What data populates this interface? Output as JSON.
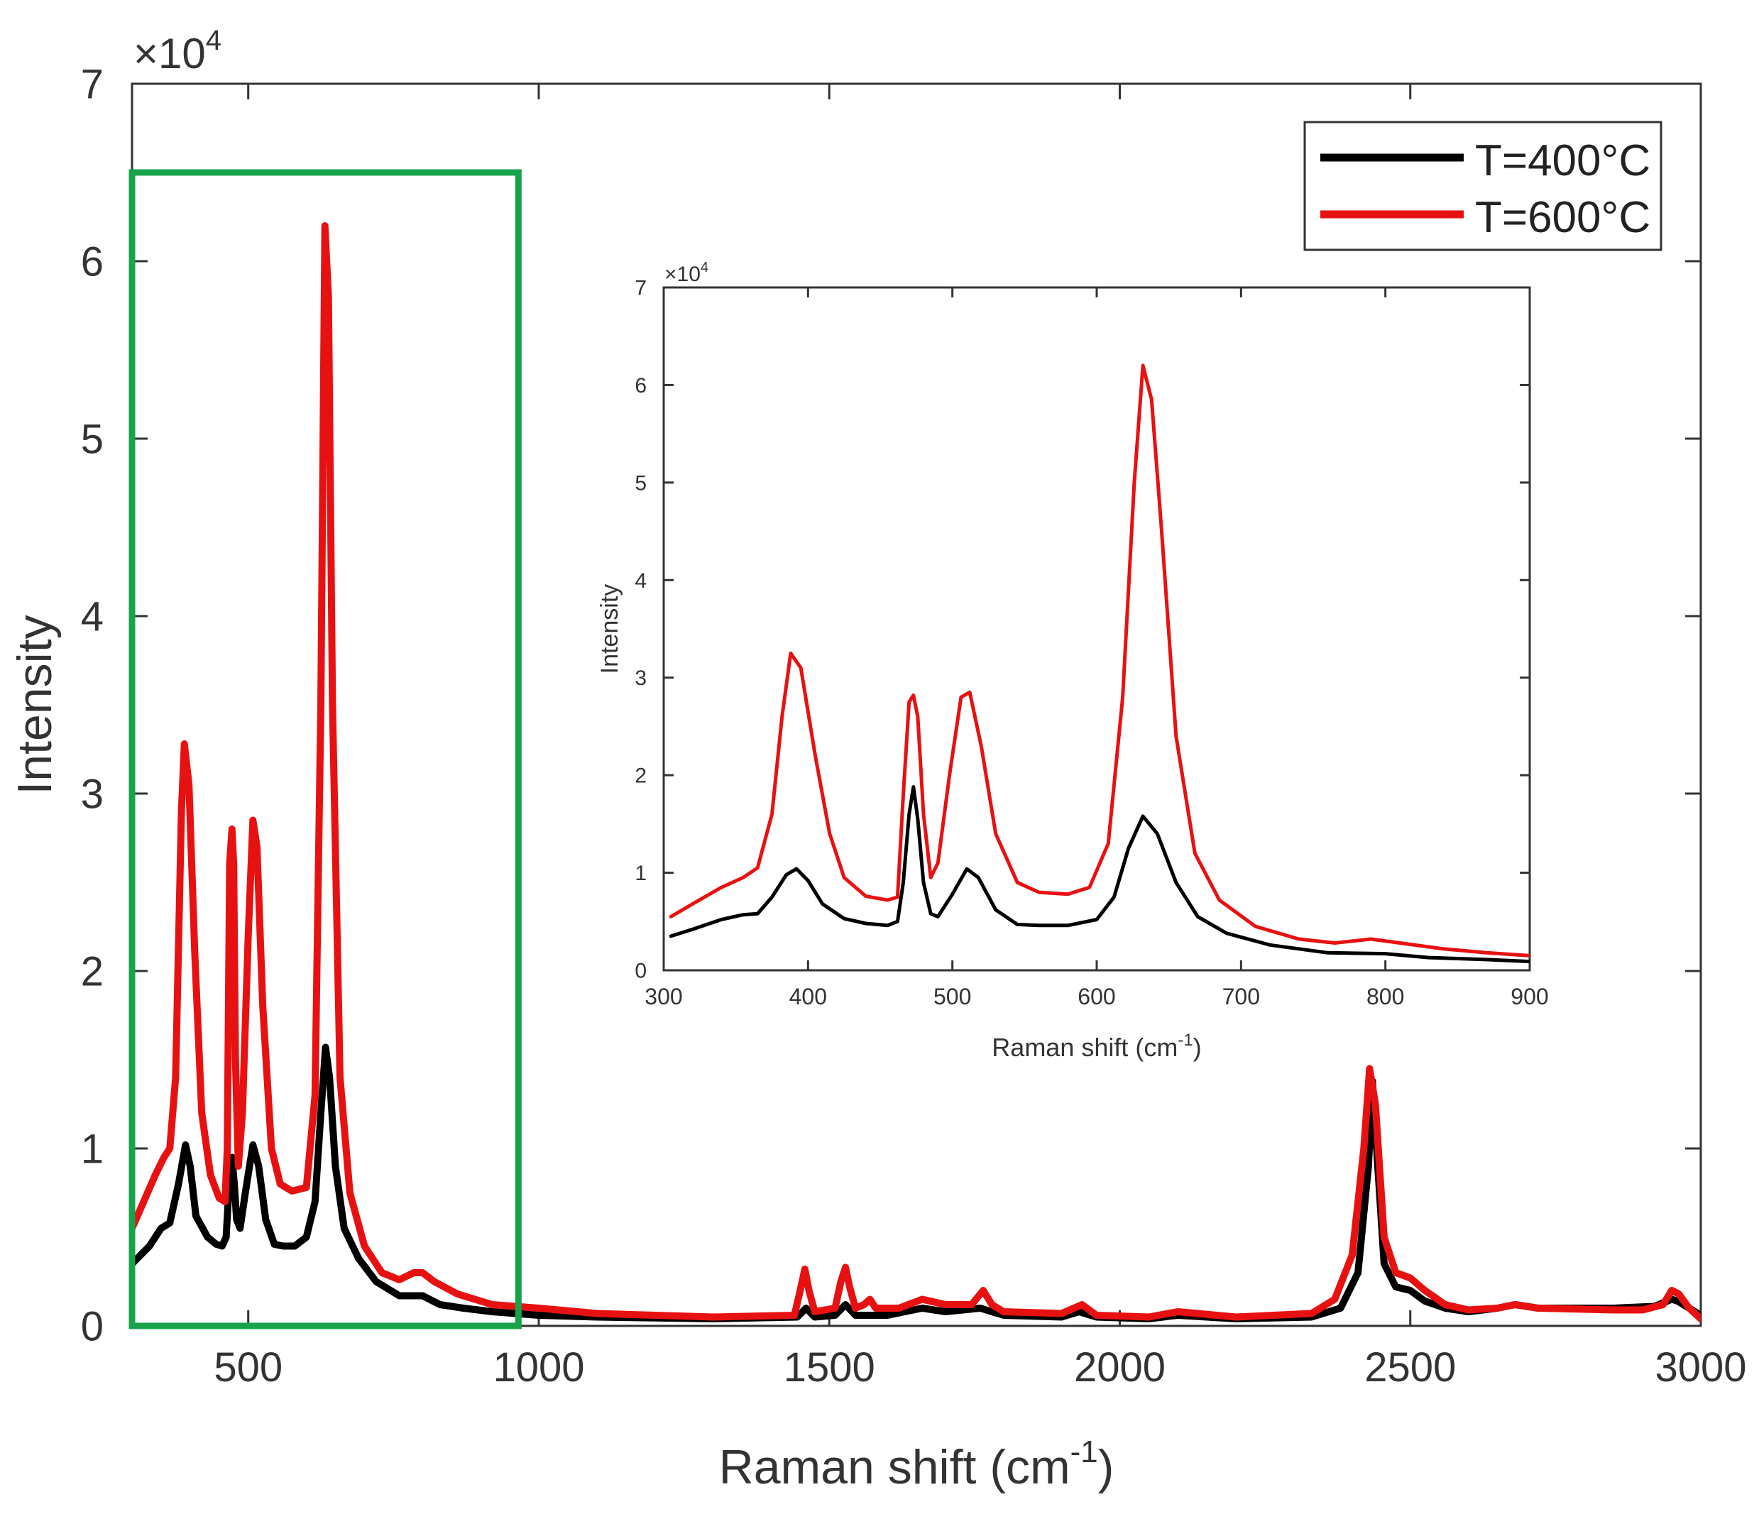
{
  "chart_data": [
    {
      "id": "main",
      "type": "line",
      "title": "",
      "xlabel": "Raman shift (cm",
      "xlabel_sup": "-1",
      "xlabel_tail": ")",
      "ylabel": "Intensity",
      "exponent_prefix": "×10",
      "exponent_power": "4",
      "xlim": [
        300,
        3000
      ],
      "ylim": [
        0,
        7
      ],
      "xticks": [
        500,
        1000,
        1500,
        2000,
        2500,
        3000
      ],
      "yticks": [
        0,
        1,
        2,
        3,
        4,
        5,
        6,
        7
      ],
      "legend": {
        "position": "top-right",
        "entries": [
          {
            "label": "T=400°C",
            "color": "#000000"
          },
          {
            "label": "T=600°C",
            "color": "#e81111"
          }
        ]
      },
      "highlight_region": {
        "x": [
          300,
          965
        ],
        "y": [
          0,
          6.5
        ],
        "color": "#16a34a"
      },
      "series": [
        {
          "name": "T=400°C",
          "color": "#000000",
          "points": [
            [
              300,
              0.35
            ],
            [
              330,
              0.45
            ],
            [
              350,
              0.55
            ],
            [
              365,
              0.58
            ],
            [
              380,
              0.8
            ],
            [
              392,
              1.02
            ],
            [
              400,
              0.9
            ],
            [
              410,
              0.62
            ],
            [
              430,
              0.5
            ],
            [
              445,
              0.46
            ],
            [
              455,
              0.45
            ],
            [
              462,
              0.5
            ],
            [
              468,
              0.85
            ],
            [
              472,
              0.95
            ],
            [
              476,
              0.8
            ],
            [
              480,
              0.6
            ],
            [
              486,
              0.55
            ],
            [
              495,
              0.75
            ],
            [
              508,
              1.02
            ],
            [
              518,
              0.9
            ],
            [
              530,
              0.6
            ],
            [
              545,
              0.46
            ],
            [
              560,
              0.45
            ],
            [
              580,
              0.45
            ],
            [
              600,
              0.5
            ],
            [
              615,
              0.7
            ],
            [
              625,
              1.2
            ],
            [
              633,
              1.57
            ],
            [
              640,
              1.4
            ],
            [
              650,
              0.9
            ],
            [
              665,
              0.55
            ],
            [
              690,
              0.38
            ],
            [
              720,
              0.25
            ],
            [
              760,
              0.17
            ],
            [
              800,
              0.17
            ],
            [
              830,
              0.12
            ],
            [
              870,
              0.1
            ],
            [
              920,
              0.08
            ],
            [
              1000,
              0.06
            ],
            [
              1100,
              0.05
            ],
            [
              1300,
              0.04
            ],
            [
              1445,
              0.05
            ],
            [
              1460,
              0.1
            ],
            [
              1475,
              0.05
            ],
            [
              1510,
              0.06
            ],
            [
              1528,
              0.12
            ],
            [
              1545,
              0.06
            ],
            [
              1600,
              0.06
            ],
            [
              1660,
              0.1
            ],
            [
              1700,
              0.08
            ],
            [
              1760,
              0.1
            ],
            [
              1780,
              0.08
            ],
            [
              1800,
              0.06
            ],
            [
              1900,
              0.05
            ],
            [
              1930,
              0.08
            ],
            [
              1960,
              0.05
            ],
            [
              2050,
              0.04
            ],
            [
              2100,
              0.06
            ],
            [
              2200,
              0.04
            ],
            [
              2330,
              0.05
            ],
            [
              2380,
              0.1
            ],
            [
              2410,
              0.3
            ],
            [
              2428,
              0.9
            ],
            [
              2435,
              1.38
            ],
            [
              2442,
              1.0
            ],
            [
              2455,
              0.35
            ],
            [
              2475,
              0.22
            ],
            [
              2500,
              0.2
            ],
            [
              2525,
              0.14
            ],
            [
              2560,
              0.1
            ],
            [
              2600,
              0.08
            ],
            [
              2650,
              0.1
            ],
            [
              2680,
              0.12
            ],
            [
              2720,
              0.1
            ],
            [
              2850,
              0.1
            ],
            [
              2920,
              0.11
            ],
            [
              2950,
              0.15
            ],
            [
              2960,
              0.14
            ],
            [
              2980,
              0.1
            ],
            [
              3000,
              0.06
            ]
          ]
        },
        {
          "name": "T=600°C",
          "color": "#e81111",
          "points": [
            [
              300,
              0.55
            ],
            [
              320,
              0.7
            ],
            [
              340,
              0.85
            ],
            [
              355,
              0.95
            ],
            [
              365,
              1.0
            ],
            [
              375,
              1.4
            ],
            [
              385,
              2.9
            ],
            [
              390,
              3.28
            ],
            [
              398,
              3.05
            ],
            [
              408,
              2.1
            ],
            [
              420,
              1.2
            ],
            [
              435,
              0.85
            ],
            [
              450,
              0.72
            ],
            [
              460,
              0.7
            ],
            [
              464,
              1.0
            ],
            [
              468,
              2.6
            ],
            [
              472,
              2.8
            ],
            [
              475,
              2.6
            ],
            [
              478,
              1.5
            ],
            [
              483,
              0.9
            ],
            [
              490,
              1.2
            ],
            [
              500,
              2.2
            ],
            [
              508,
              2.85
            ],
            [
              515,
              2.7
            ],
            [
              525,
              1.8
            ],
            [
              540,
              1.0
            ],
            [
              555,
              0.8
            ],
            [
              575,
              0.76
            ],
            [
              600,
              0.78
            ],
            [
              615,
              1.3
            ],
            [
              625,
              3.5
            ],
            [
              632,
              6.2
            ],
            [
              638,
              5.8
            ],
            [
              645,
              3.5
            ],
            [
              658,
              1.4
            ],
            [
              675,
              0.75
            ],
            [
              700,
              0.45
            ],
            [
              730,
              0.3
            ],
            [
              760,
              0.26
            ],
            [
              785,
              0.3
            ],
            [
              800,
              0.3
            ],
            [
              820,
              0.25
            ],
            [
              860,
              0.18
            ],
            [
              920,
              0.12
            ],
            [
              1000,
              0.1
            ],
            [
              1100,
              0.07
            ],
            [
              1300,
              0.05
            ],
            [
              1440,
              0.06
            ],
            [
              1450,
              0.2
            ],
            [
              1458,
              0.32
            ],
            [
              1465,
              0.2
            ],
            [
              1475,
              0.08
            ],
            [
              1510,
              0.1
            ],
            [
              1520,
              0.25
            ],
            [
              1528,
              0.33
            ],
            [
              1535,
              0.22
            ],
            [
              1545,
              0.1
            ],
            [
              1560,
              0.12
            ],
            [
              1570,
              0.15
            ],
            [
              1580,
              0.1
            ],
            [
              1620,
              0.1
            ],
            [
              1660,
              0.15
            ],
            [
              1700,
              0.12
            ],
            [
              1745,
              0.12
            ],
            [
              1765,
              0.2
            ],
            [
              1780,
              0.12
            ],
            [
              1800,
              0.08
            ],
            [
              1900,
              0.07
            ],
            [
              1935,
              0.12
            ],
            [
              1960,
              0.06
            ],
            [
              2050,
              0.05
            ],
            [
              2100,
              0.08
            ],
            [
              2200,
              0.05
            ],
            [
              2330,
              0.07
            ],
            [
              2370,
              0.15
            ],
            [
              2400,
              0.4
            ],
            [
              2420,
              1.0
            ],
            [
              2430,
              1.45
            ],
            [
              2440,
              1.25
            ],
            [
              2455,
              0.5
            ],
            [
              2475,
              0.3
            ],
            [
              2500,
              0.27
            ],
            [
              2525,
              0.2
            ],
            [
              2560,
              0.12
            ],
            [
              2600,
              0.09
            ],
            [
              2650,
              0.1
            ],
            [
              2680,
              0.12
            ],
            [
              2720,
              0.1
            ],
            [
              2850,
              0.09
            ],
            [
              2900,
              0.09
            ],
            [
              2935,
              0.12
            ],
            [
              2950,
              0.2
            ],
            [
              2962,
              0.18
            ],
            [
              2980,
              0.1
            ],
            [
              3000,
              0.04
            ]
          ]
        }
      ]
    },
    {
      "id": "inset",
      "type": "line",
      "title": "",
      "xlabel": "Raman shift (cm",
      "xlabel_sup": "-1",
      "xlabel_tail": ")",
      "ylabel": "Intensity",
      "exponent_prefix": "×10",
      "exponent_power": "4",
      "xlim": [
        300,
        900
      ],
      "ylim": [
        0,
        7
      ],
      "xticks": [
        300,
        400,
        500,
        600,
        700,
        800,
        900
      ],
      "yticks": [
        0,
        1,
        2,
        3,
        4,
        5,
        6,
        7
      ],
      "series": [
        {
          "name": "T=400°C",
          "color": "#000000",
          "points": [
            [
              305,
              0.35
            ],
            [
              320,
              0.42
            ],
            [
              340,
              0.52
            ],
            [
              355,
              0.57
            ],
            [
              365,
              0.58
            ],
            [
              375,
              0.75
            ],
            [
              385,
              0.98
            ],
            [
              392,
              1.04
            ],
            [
              400,
              0.92
            ],
            [
              410,
              0.68
            ],
            [
              425,
              0.53
            ],
            [
              440,
              0.48
            ],
            [
              455,
              0.46
            ],
            [
              462,
              0.5
            ],
            [
              466,
              0.9
            ],
            [
              470,
              1.6
            ],
            [
              473,
              1.88
            ],
            [
              476,
              1.55
            ],
            [
              480,
              0.9
            ],
            [
              485,
              0.58
            ],
            [
              490,
              0.55
            ],
            [
              500,
              0.78
            ],
            [
              510,
              1.04
            ],
            [
              518,
              0.95
            ],
            [
              530,
              0.62
            ],
            [
              545,
              0.47
            ],
            [
              560,
              0.46
            ],
            [
              580,
              0.46
            ],
            [
              600,
              0.52
            ],
            [
              612,
              0.75
            ],
            [
              622,
              1.25
            ],
            [
              632,
              1.58
            ],
            [
              642,
              1.4
            ],
            [
              655,
              0.9
            ],
            [
              670,
              0.55
            ],
            [
              690,
              0.38
            ],
            [
              720,
              0.26
            ],
            [
              760,
              0.18
            ],
            [
              800,
              0.17
            ],
            [
              830,
              0.13
            ],
            [
              870,
              0.11
            ],
            [
              900,
              0.09
            ]
          ]
        },
        {
          "name": "T=600°C",
          "color": "#e81111",
          "points": [
            [
              305,
              0.55
            ],
            [
              320,
              0.68
            ],
            [
              340,
              0.85
            ],
            [
              355,
              0.95
            ],
            [
              365,
              1.05
            ],
            [
              375,
              1.6
            ],
            [
              382,
              2.6
            ],
            [
              388,
              3.25
            ],
            [
              395,
              3.1
            ],
            [
              405,
              2.2
            ],
            [
              415,
              1.4
            ],
            [
              425,
              0.95
            ],
            [
              440,
              0.76
            ],
            [
              455,
              0.72
            ],
            [
              462,
              0.75
            ],
            [
              466,
              1.8
            ],
            [
              470,
              2.75
            ],
            [
              473,
              2.82
            ],
            [
              476,
              2.6
            ],
            [
              480,
              1.6
            ],
            [
              485,
              0.95
            ],
            [
              490,
              1.1
            ],
            [
              498,
              2.0
            ],
            [
              506,
              2.8
            ],
            [
              512,
              2.85
            ],
            [
              520,
              2.3
            ],
            [
              530,
              1.4
            ],
            [
              545,
              0.9
            ],
            [
              560,
              0.8
            ],
            [
              580,
              0.78
            ],
            [
              595,
              0.85
            ],
            [
              608,
              1.3
            ],
            [
              618,
              2.8
            ],
            [
              626,
              5.0
            ],
            [
              632,
              6.2
            ],
            [
              638,
              5.85
            ],
            [
              645,
              4.5
            ],
            [
              655,
              2.4
            ],
            [
              668,
              1.2
            ],
            [
              685,
              0.72
            ],
            [
              710,
              0.45
            ],
            [
              740,
              0.32
            ],
            [
              765,
              0.28
            ],
            [
              790,
              0.32
            ],
            [
              810,
              0.28
            ],
            [
              840,
              0.22
            ],
            [
              870,
              0.18
            ],
            [
              900,
              0.15
            ]
          ]
        }
      ]
    }
  ]
}
